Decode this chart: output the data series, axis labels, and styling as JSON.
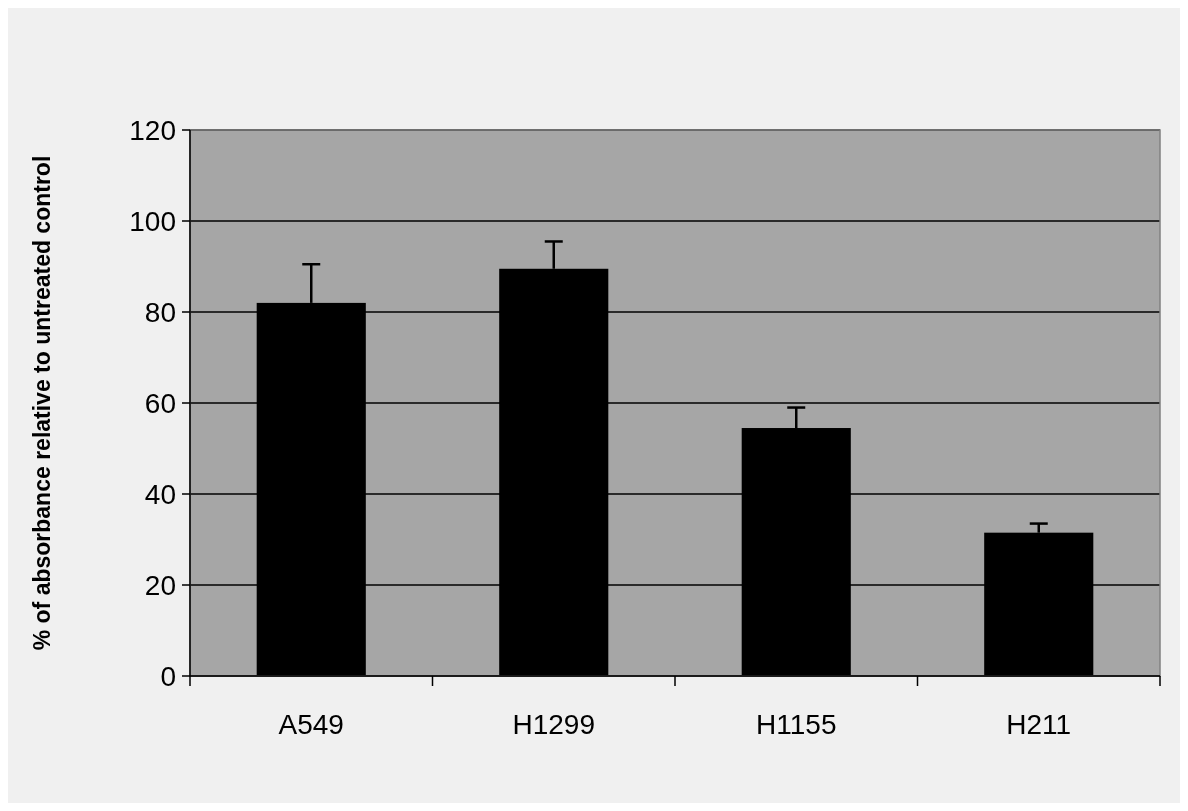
{
  "chart_data": {
    "type": "bar",
    "ylabel": "% of absorbance relative to untreated control",
    "categories": [
      "A549",
      "H1299",
      "H1155",
      "H211"
    ],
    "values": [
      82,
      89.5,
      54.5,
      31.5
    ],
    "errors": [
      [
        82,
        90.5
      ],
      [
        89.5,
        95.5
      ],
      [
        54.5,
        59
      ],
      [
        31.5,
        33.5
      ]
    ],
    "color": "#000000",
    "ylim": [
      0,
      120
    ],
    "yticks": [
      0,
      20,
      40,
      60,
      80,
      100,
      120
    ],
    "grid": "y"
  }
}
